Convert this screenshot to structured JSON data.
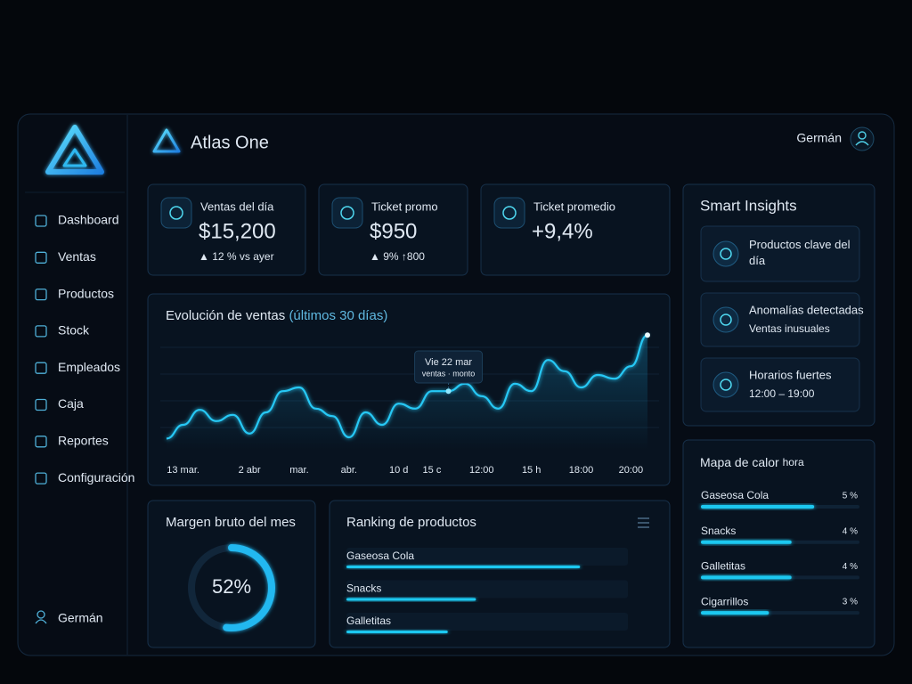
{
  "app": {
    "name": "Atlas One",
    "user": "Germán"
  },
  "sidebar": {
    "items": [
      "Dashboard",
      "Ventas",
      "Productos",
      "Stock",
      "Empleados",
      "Caja",
      "Reportes",
      "Configuración"
    ],
    "user": "Germán"
  },
  "kpis": [
    {
      "label": "Ventas del día",
      "value": "$15,200",
      "delta": "▲ 12 % vs ayer"
    },
    {
      "label": "Ticket promo",
      "value": "$950",
      "delta": "▲ 9% ↑800"
    },
    {
      "label": "Ticket promedio",
      "value": "+9,4%"
    }
  ],
  "sales_chart": {
    "type": "line",
    "title": "Evolución de ventas",
    "subtitle": "(últimos 30 días)",
    "categories": [
      null,
      "13 mar.",
      null,
      null,
      null,
      "2 abr",
      null,
      null,
      "mar.",
      null,
      null,
      "abr.",
      null,
      null,
      "10 d",
      null,
      "15 c",
      null,
      null,
      "12:00",
      null,
      null,
      "15 h",
      null,
      null,
      "18:00",
      null,
      null,
      "20:00",
      null
    ],
    "values": [
      9,
      20,
      32,
      23,
      28,
      13,
      30,
      47,
      50,
      33,
      27,
      10,
      30,
      20,
      37,
      33,
      47,
      47,
      53,
      43,
      33,
      53,
      47,
      72,
      63,
      50,
      60,
      57,
      67,
      92
    ],
    "ylim": [
      0,
      100
    ],
    "color": "#27c8f5",
    "tooltip": {
      "title": "Vie 22 mar",
      "text": "ventas · monto"
    }
  },
  "insights": {
    "title": "Smart Insights",
    "items": [
      {
        "title": "Productos clave del día"
      },
      {
        "title": "Anomalías detectadas",
        "detail": "Ventas inusuales"
      },
      {
        "title": "Horarios fuertes",
        "detail": "12:00 – 19:00"
      }
    ]
  },
  "heatmap": {
    "type": "bar",
    "title": "Mapa de calor",
    "subtitle": "hora",
    "categories": [
      "Gaseosa Cola",
      "Snacks",
      "Galletitas",
      "Cigarrillos"
    ],
    "values": [
      5,
      4,
      4,
      3
    ],
    "value_labels": [
      "5 %",
      "4 %",
      "4 %",
      "3 %"
    ],
    "xlim": [
      0,
      7
    ],
    "color": "#1ec8f0"
  },
  "margin": {
    "type": "donut",
    "title": "Margen bruto del mes",
    "value": 52,
    "value_label": "52%",
    "lim": [
      0,
      100
    ],
    "color": "#22b8f0"
  },
  "ranking": {
    "type": "bar",
    "title": "Ranking de productos",
    "categories": [
      "Gaseosa Cola",
      "Snacks",
      "Galletitas"
    ],
    "values": [
      83,
      46,
      36
    ],
    "xlim": [
      0,
      100
    ],
    "color": "#1ec8f0"
  }
}
